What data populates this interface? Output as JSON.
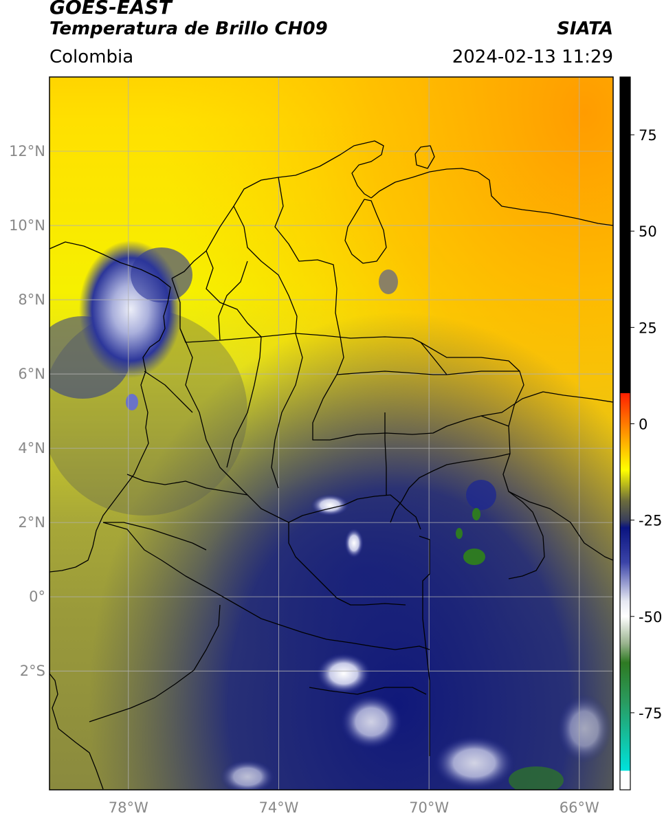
{
  "header": {
    "title_line1": "GOES-EAST",
    "title_line2": "Temperatura de Brillo CH09",
    "organization": "SIATA",
    "region": "Colombia",
    "timestamp": "2024-02-13 11:29"
  },
  "map": {
    "extent": {
      "lon_min": -80.1,
      "lon_max": -65.1,
      "lat_min": -5.2,
      "lat_max": 14.0
    },
    "lat_ticks": [
      {
        "value": 12,
        "label": "12°N"
      },
      {
        "value": 10,
        "label": "10°N"
      },
      {
        "value": 8,
        "label": "8°N"
      },
      {
        "value": 6,
        "label": "6°N"
      },
      {
        "value": 4,
        "label": "4°N"
      },
      {
        "value": 2,
        "label": "2°N"
      },
      {
        "value": 0,
        "label": "0°"
      },
      {
        "value": -2,
        "label": "2°S"
      }
    ],
    "lon_ticks": [
      {
        "value": -78,
        "label": "78°W"
      },
      {
        "value": -74,
        "label": "74°W"
      },
      {
        "value": -70,
        "label": "70°W"
      },
      {
        "value": -66,
        "label": "66°W"
      }
    ],
    "grid": true
  },
  "colorbar": {
    "vmin": -95,
    "vmax": 90,
    "ticks": [
      {
        "value": 75,
        "label": "75"
      },
      {
        "value": 50,
        "label": "50"
      },
      {
        "value": 25,
        "label": "25"
      },
      {
        "value": 0,
        "label": "0"
      },
      {
        "value": -25,
        "label": "-25"
      },
      {
        "value": -50,
        "label": "-50"
      },
      {
        "value": -75,
        "label": "-75"
      }
    ],
    "stops": [
      {
        "value": 90,
        "color": "#000000"
      },
      {
        "value": 8,
        "color": "#000000"
      },
      {
        "value": 7.9,
        "color": "#ff2000"
      },
      {
        "value": 0,
        "color": "#ff7a00"
      },
      {
        "value": -12,
        "color": "#ffff00"
      },
      {
        "value": -20,
        "color": "#6b6b3c"
      },
      {
        "value": -25,
        "color": "#3a3f5a"
      },
      {
        "value": -27,
        "color": "#0a1480"
      },
      {
        "value": -36,
        "color": "#3b44a8"
      },
      {
        "value": -46,
        "color": "#e6e8f2"
      },
      {
        "value": -50,
        "color": "#ffffff"
      },
      {
        "value": -57,
        "color": "#9ab38f"
      },
      {
        "value": -62,
        "color": "#2e7a22"
      },
      {
        "value": -72,
        "color": "#2a9a5e"
      },
      {
        "value": -90,
        "color": "#00e2dc"
      },
      {
        "value": -90.1,
        "color": "#ffffff"
      },
      {
        "value": -95,
        "color": "#ffffff"
      }
    ]
  },
  "colors": {
    "frame": "#000000",
    "grid": "#b0b0b0",
    "tick_label": "#888888",
    "warm_orange": "#ffa000",
    "warm_yellow": "#ffee00",
    "mid_olive": "#b8b834",
    "cold_navy": "#141c78"
  }
}
